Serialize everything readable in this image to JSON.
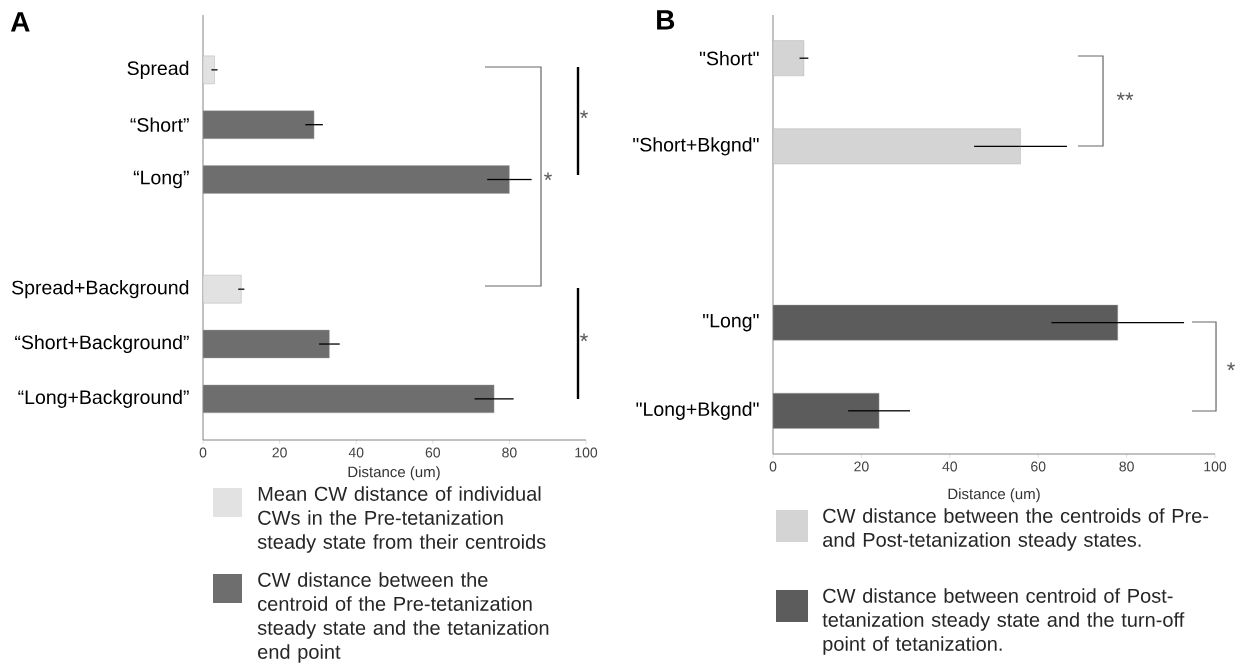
{
  "chart_data": [
    {
      "type": "bar",
      "orientation": "horizontal",
      "title": "A",
      "xlabel": "Distance (um)",
      "categories": [
        "Spread",
        "“Short”",
        "“Long”",
        null,
        "Spread+Background",
        "“Short+Background”",
        "“Long+Background”"
      ],
      "series": [
        {
          "name": "Mean CW distance of individual CWs in the Pre-tetanization steady state from their centroids",
          "color": "#e2e2e2",
          "values": [
            3,
            null,
            null,
            null,
            10,
            null,
            null
          ],
          "errors": [
            0.8,
            null,
            null,
            null,
            0.8,
            null,
            null
          ]
        },
        {
          "name": "CW distance between the centroid of the Pre-tetanization steady state and the tetanization end point",
          "color": "#6e6e6e",
          "values": [
            null,
            29,
            80,
            null,
            null,
            33,
            76
          ],
          "errors": [
            null,
            2.3,
            5.8,
            null,
            null,
            2.7,
            5.1
          ]
        }
      ],
      "xlim": [
        0,
        100
      ],
      "xticks": [
        0,
        20,
        40,
        60,
        80,
        100
      ],
      "legend": "bottom",
      "annotations": [
        "*",
        "*",
        "*"
      ]
    },
    {
      "type": "bar",
      "orientation": "horizontal",
      "title": "B",
      "xlabel": "Distance (um)",
      "categories": [
        "\"Short\"",
        "\"Short+Bkgnd\"",
        null,
        "\"Long\"",
        "\"Long+Bkgnd\""
      ],
      "series": [
        {
          "name": "CW distance between the centroids of Pre- and Post-tetanization steady states.",
          "color": "#d4d4d4",
          "values": [
            7,
            56,
            null,
            null,
            null
          ],
          "errors": [
            1,
            10.5,
            null,
            null,
            null
          ]
        },
        {
          "name": "CW distance between centroid of Post-tetanization steady state and the turn-off point of tetanization.",
          "color": "#5c5c5c",
          "values": [
            null,
            null,
            null,
            78,
            24
          ],
          "errors": [
            null,
            null,
            null,
            15,
            7
          ]
        }
      ],
      "xlim": [
        0,
        100
      ],
      "xticks": [
        0,
        20,
        40,
        60,
        80,
        100
      ],
      "legend": "bottom",
      "annotations": [
        "**",
        "*"
      ]
    }
  ]
}
